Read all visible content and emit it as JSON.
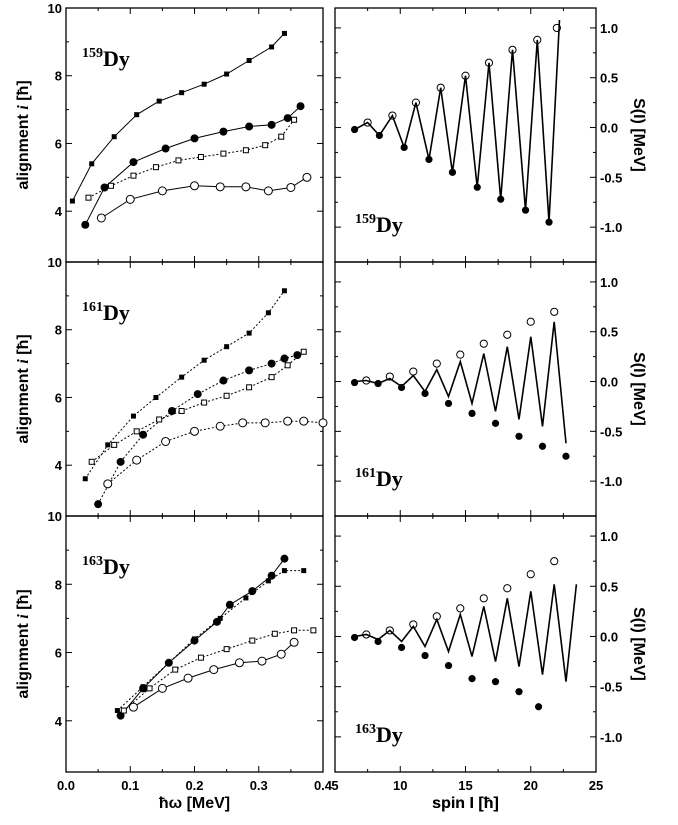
{
  "chart_data": [
    {
      "type": "line",
      "panel": "top-left",
      "annotation": {
        "mass": "159",
        "element": "Dy"
      },
      "xlim": [
        0,
        0.4
      ],
      "ylim": [
        2.5,
        10
      ],
      "xticks": [
        "0.0",
        "0.1",
        "0.2",
        "0.3",
        "0.4"
      ],
      "yticks": [
        "4",
        "6",
        "8",
        "10"
      ],
      "ylabel_main": "alignment ",
      "ylabel_italic": "i",
      "ylabel_unit": " [ħ]",
      "xlabel": "ħω [MeV]",
      "series": [
        {
          "marker": "square-filled",
          "line": "solid",
          "x": [
            0.01,
            0.04,
            0.075,
            0.11,
            0.145,
            0.18,
            0.215,
            0.25,
            0.285,
            0.32,
            0.34
          ],
          "y": [
            4.3,
            5.4,
            6.2,
            6.85,
            7.25,
            7.5,
            7.75,
            8.05,
            8.45,
            8.85,
            9.25
          ]
        },
        {
          "marker": "circle-filled",
          "line": "solid",
          "x": [
            0.03,
            0.06,
            0.105,
            0.155,
            0.2,
            0.245,
            0.285,
            0.32,
            0.345,
            0.365
          ],
          "y": [
            3.6,
            4.7,
            5.45,
            5.85,
            6.15,
            6.35,
            6.5,
            6.55,
            6.75,
            7.1
          ]
        },
        {
          "marker": "square-open",
          "line": "dotted",
          "x": [
            0.035,
            0.07,
            0.105,
            0.14,
            0.175,
            0.21,
            0.245,
            0.28,
            0.31,
            0.335,
            0.355
          ],
          "y": [
            4.4,
            4.75,
            5.05,
            5.3,
            5.5,
            5.6,
            5.7,
            5.8,
            5.95,
            6.2,
            6.7
          ]
        },
        {
          "marker": "circle-open",
          "line": "solid",
          "x": [
            0.055,
            0.1,
            0.15,
            0.2,
            0.24,
            0.28,
            0.315,
            0.35,
            0.375
          ],
          "y": [
            3.8,
            4.35,
            4.6,
            4.75,
            4.72,
            4.72,
            4.6,
            4.7,
            5.0
          ]
        }
      ]
    },
    {
      "type": "line",
      "panel": "middle-left",
      "annotation": {
        "mass": "161",
        "element": "Dy"
      },
      "xlim": [
        0,
        0.4
      ],
      "ylim": [
        2.5,
        10
      ],
      "xticks": [
        "0.0",
        "0.1",
        "0.2",
        "0.3",
        "0.4"
      ],
      "yticks": [
        "4",
        "6",
        "8",
        "10"
      ],
      "ylabel_main": "alignment ",
      "ylabel_italic": "i",
      "ylabel_unit": " [ħ]",
      "series": [
        {
          "marker": "square-filled",
          "line": "dotted",
          "x": [
            0.03,
            0.065,
            0.105,
            0.14,
            0.18,
            0.215,
            0.25,
            0.285,
            0.315,
            0.34
          ],
          "y": [
            3.6,
            4.6,
            5.45,
            6.0,
            6.6,
            7.1,
            7.5,
            7.9,
            8.5,
            9.15
          ]
        },
        {
          "marker": "circle-filled",
          "line": "dotted",
          "x": [
            0.05,
            0.085,
            0.12,
            0.165,
            0.205,
            0.245,
            0.285,
            0.32,
            0.34,
            0.36
          ],
          "y": [
            2.85,
            4.1,
            4.9,
            5.6,
            6.1,
            6.5,
            6.8,
            7.0,
            7.15,
            7.25
          ]
        },
        {
          "marker": "square-open",
          "line": "dotted",
          "x": [
            0.04,
            0.075,
            0.11,
            0.145,
            0.18,
            0.215,
            0.25,
            0.285,
            0.32,
            0.345,
            0.37
          ],
          "y": [
            4.1,
            4.6,
            5.0,
            5.35,
            5.6,
            5.85,
            6.05,
            6.3,
            6.6,
            6.95,
            7.35
          ]
        },
        {
          "marker": "circle-open",
          "line": "dotted",
          "x": [
            0.065,
            0.11,
            0.155,
            0.2,
            0.24,
            0.275,
            0.31,
            0.345,
            0.37,
            0.4
          ],
          "y": [
            3.45,
            4.15,
            4.7,
            5.0,
            5.15,
            5.25,
            5.25,
            5.3,
            5.3,
            5.25
          ]
        }
      ]
    },
    {
      "type": "line",
      "panel": "bottom-left",
      "annotation": {
        "mass": "163",
        "element": "Dy"
      },
      "xlim": [
        0,
        0.4
      ],
      "ylim": [
        2.5,
        10
      ],
      "xticks": [
        "0.0",
        "0.1",
        "0.2",
        "0.3",
        "0.4"
      ],
      "yticks": [
        "4",
        "6",
        "8",
        "10"
      ],
      "ylabel_main": "alignment ",
      "ylabel_italic": "i",
      "ylabel_unit": " [ħ]",
      "series": [
        {
          "marker": "square-filled",
          "line": "dotted",
          "x": [
            0.08,
            0.12,
            0.16,
            0.2,
            0.24,
            0.28,
            0.315,
            0.34,
            0.37
          ],
          "y": [
            4.3,
            5.0,
            5.7,
            6.4,
            7.0,
            7.6,
            8.1,
            8.4,
            8.4
          ]
        },
        {
          "marker": "circle-filled",
          "line": "solid",
          "x": [
            0.085,
            0.12,
            0.16,
            0.2,
            0.235,
            0.255,
            0.29,
            0.32,
            0.34
          ],
          "y": [
            4.15,
            4.95,
            5.7,
            6.35,
            6.9,
            7.4,
            7.8,
            8.25,
            8.75
          ]
        },
        {
          "marker": "square-open",
          "line": "dotted",
          "x": [
            0.09,
            0.13,
            0.17,
            0.21,
            0.25,
            0.29,
            0.325,
            0.355,
            0.385
          ],
          "y": [
            4.3,
            4.95,
            5.5,
            5.85,
            6.1,
            6.35,
            6.55,
            6.65,
            6.65
          ]
        },
        {
          "marker": "circle-open",
          "line": "solid",
          "x": [
            0.105,
            0.15,
            0.19,
            0.23,
            0.27,
            0.305,
            0.335,
            0.355
          ],
          "y": [
            4.4,
            4.95,
            5.25,
            5.5,
            5.7,
            5.75,
            5.95,
            6.3
          ]
        }
      ]
    },
    {
      "type": "line",
      "panel": "top-right",
      "annotation": {
        "mass": "159",
        "element": "Dy"
      },
      "xlim": [
        5,
        25
      ],
      "ylim": [
        -1.35,
        1.2
      ],
      "xticks": [
        "5",
        "10",
        "15",
        "20",
        "25"
      ],
      "yticks": [
        "1.0",
        "0.5",
        "0.0",
        "-0.5",
        "-1.0"
      ],
      "ylabel": "S(I) [MeV]",
      "xlabel": "spin I [ħ]",
      "line": {
        "x": [
          6.5,
          7.5,
          8.4,
          9.4,
          10.3,
          11.2,
          12.2,
          13.1,
          14.0,
          15.0,
          15.9,
          16.8,
          17.7,
          18.6,
          19.6,
          20.5,
          21.4,
          22.2
        ],
        "y": [
          -0.02,
          0.05,
          -0.08,
          0.12,
          -0.2,
          0.25,
          -0.32,
          0.4,
          -0.45,
          0.52,
          -0.6,
          0.65,
          -0.72,
          0.78,
          -0.83,
          0.88,
          -0.95,
          1.08
        ]
      },
      "filled_points": {
        "x": [
          6.5,
          8.4,
          10.3,
          12.2,
          14.0,
          15.9,
          17.7,
          19.6,
          21.4
        ],
        "y": [
          -0.02,
          -0.08,
          -0.2,
          -0.32,
          -0.45,
          -0.6,
          -0.72,
          -0.83,
          -0.95
        ]
      },
      "open_points": {
        "x": [
          7.5,
          9.4,
          11.2,
          13.1,
          15.0,
          16.8,
          18.6,
          20.5,
          22.0
        ],
        "y": [
          0.05,
          0.12,
          0.25,
          0.4,
          0.52,
          0.65,
          0.78,
          0.88,
          1.0
        ]
      }
    },
    {
      "type": "line",
      "panel": "middle-right",
      "annotation": {
        "mass": "161",
        "element": "Dy"
      },
      "xlim": [
        5,
        25
      ],
      "ylim": [
        -1.35,
        1.2
      ],
      "xticks": [
        "5",
        "10",
        "15",
        "20",
        "25"
      ],
      "yticks": [
        "1.0",
        "0.5",
        "0.0",
        "-0.5",
        "-1.0"
      ],
      "ylabel": "S(I) [MeV]",
      "line": {
        "x": [
          6.5,
          7.4,
          8.3,
          9.2,
          10.1,
          11.0,
          11.9,
          12.8,
          13.7,
          14.6,
          15.5,
          16.4,
          17.3,
          18.2,
          19.1,
          20.0,
          20.9,
          21.8,
          22.7
        ],
        "y": [
          0.0,
          0.01,
          -0.02,
          0.03,
          -0.05,
          0.06,
          -0.1,
          0.12,
          -0.15,
          0.2,
          -0.22,
          0.28,
          -0.3,
          0.35,
          -0.38,
          0.45,
          -0.45,
          0.6,
          -0.62
        ]
      },
      "filled_points": {
        "x": [
          6.5,
          8.3,
          10.1,
          11.9,
          13.7,
          15.5,
          17.3,
          19.1,
          20.9,
          22.7
        ],
        "y": [
          -0.01,
          -0.02,
          -0.06,
          -0.12,
          -0.22,
          -0.32,
          -0.42,
          -0.55,
          -0.65,
          -0.75
        ]
      },
      "open_points": {
        "x": [
          7.4,
          9.2,
          11.0,
          12.8,
          14.6,
          16.4,
          18.2,
          20.0,
          21.8
        ],
        "y": [
          0.01,
          0.05,
          0.1,
          0.18,
          0.27,
          0.38,
          0.47,
          0.6,
          0.7
        ]
      }
    },
    {
      "type": "line",
      "panel": "bottom-right",
      "annotation": {
        "mass": "163",
        "element": "Dy"
      },
      "xlim": [
        5,
        25
      ],
      "ylim": [
        -1.35,
        1.2
      ],
      "xticks": [
        "5",
        "10",
        "15",
        "20",
        "25"
      ],
      "yticks": [
        "1.0",
        "0.5",
        "0.0",
        "-0.5",
        "-1.0"
      ],
      "ylabel": "S(I) [MeV]",
      "xlabel": "spin I [ħ]",
      "line": {
        "x": [
          6.5,
          7.4,
          8.3,
          9.2,
          10.1,
          11.0,
          11.9,
          12.8,
          13.7,
          14.6,
          15.5,
          16.4,
          17.3,
          18.2,
          19.1,
          20.0,
          20.9,
          21.8,
          22.7,
          23.5
        ],
        "y": [
          0.0,
          0.02,
          -0.03,
          0.06,
          -0.05,
          0.1,
          -0.1,
          0.17,
          -0.15,
          0.22,
          -0.2,
          0.3,
          -0.25,
          0.38,
          -0.3,
          0.45,
          -0.38,
          0.52,
          -0.45,
          0.52
        ]
      },
      "filled_points": {
        "x": [
          6.5,
          8.3,
          10.1,
          11.9,
          13.7,
          15.5,
          17.3,
          19.1,
          20.6
        ],
        "y": [
          -0.01,
          -0.05,
          -0.11,
          -0.19,
          -0.29,
          -0.42,
          -0.45,
          -0.55,
          -0.7
        ]
      },
      "open_points": {
        "x": [
          7.4,
          9.2,
          11.0,
          12.8,
          14.6,
          16.4,
          18.2,
          20.0,
          21.8
        ],
        "y": [
          0.02,
          0.06,
          0.12,
          0.2,
          0.28,
          0.38,
          0.48,
          0.62,
          0.75
        ]
      }
    }
  ]
}
